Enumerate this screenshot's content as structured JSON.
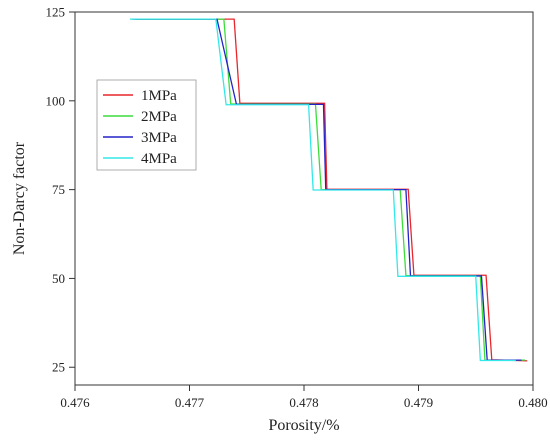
{
  "chart_data": {
    "type": "line",
    "title": "",
    "xlabel": "Porosity/%",
    "ylabel": "Non-Darcy factor",
    "xlim": [
      0.476,
      0.48
    ],
    "ylim": [
      20,
      125
    ],
    "xticks": [
      0.476,
      0.477,
      0.478,
      0.479,
      0.48
    ],
    "xtick_labels": [
      "0.476",
      "0.477",
      "0.478",
      "0.479",
      "0.480"
    ],
    "yticks": [
      25,
      50,
      75,
      100,
      125
    ],
    "ytick_labels": [
      "25",
      "50",
      "75",
      "100",
      "125"
    ],
    "grid": false,
    "legend": "upper-left inside",
    "series": [
      {
        "name": "1MPa",
        "color": "#e8262b",
        "points": [
          [
            0.47654,
            123
          ],
          [
            0.47739,
            123
          ],
          [
            0.47744,
            99.3
          ],
          [
            0.47818,
            99.3
          ],
          [
            0.4782,
            75.1
          ],
          [
            0.47891,
            75.1
          ],
          [
            0.47896,
            50.9
          ],
          [
            0.47959,
            50.9
          ],
          [
            0.47964,
            27.1
          ],
          [
            0.47995,
            26.8
          ]
        ]
      },
      {
        "name": "2MPa",
        "color": "#3ddc3d",
        "points": [
          [
            0.47652,
            123
          ],
          [
            0.4773,
            123
          ],
          [
            0.47736,
            99.1
          ],
          [
            0.4781,
            99.1
          ],
          [
            0.47815,
            75.0
          ],
          [
            0.47884,
            75.0
          ],
          [
            0.47889,
            50.8
          ],
          [
            0.47954,
            50.8
          ],
          [
            0.47958,
            27.0
          ],
          [
            0.47993,
            27.0
          ]
        ]
      },
      {
        "name": "3MPa",
        "color": "#2323c8",
        "points": [
          [
            0.4765,
            123
          ],
          [
            0.47724,
            123
          ],
          [
            0.47741,
            99.0
          ],
          [
            0.47817,
            99.0
          ],
          [
            0.47819,
            75.0
          ],
          [
            0.47889,
            75.0
          ],
          [
            0.47893,
            50.7
          ],
          [
            0.47955,
            50.7
          ],
          [
            0.4796,
            27.0
          ],
          [
            0.4799,
            27.0
          ]
        ]
      },
      {
        "name": "4MPa",
        "color": "#33e8e8",
        "points": [
          [
            0.47648,
            123
          ],
          [
            0.47723,
            123
          ],
          [
            0.47732,
            98.9
          ],
          [
            0.47804,
            98.9
          ],
          [
            0.47808,
            74.9
          ],
          [
            0.47878,
            74.9
          ],
          [
            0.47882,
            50.6
          ],
          [
            0.4795,
            50.6
          ],
          [
            0.47954,
            26.9
          ],
          [
            0.47985,
            26.9
          ]
        ]
      }
    ]
  }
}
